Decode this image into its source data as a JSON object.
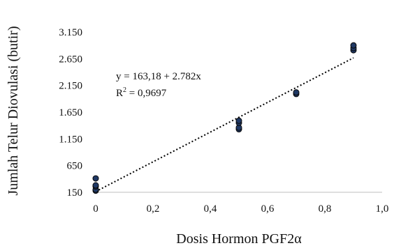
{
  "chart_data": {
    "type": "scatter",
    "xlabel": "Dosis Hormon PGF2α",
    "ylabel": "Jumlah Telur Diovulasi (butir)",
    "xlim": [
      0,
      1.0
    ],
    "ylim": [
      150,
      3150
    ],
    "x_ticks": [
      "0",
      "0,2",
      "0,4",
      "0,6",
      "0,8",
      "1,0"
    ],
    "x_tick_values": [
      0,
      0.2,
      0.4,
      0.6,
      0.8,
      1.0
    ],
    "y_ticks": [
      "150",
      "650",
      "1.150",
      "1.650",
      "2.150",
      "2.650",
      "3.150"
    ],
    "y_tick_values": [
      150,
      650,
      1150,
      1650,
      2150,
      2650,
      3150
    ],
    "grid": false,
    "marker_color": "#1f3864",
    "trendline_color": "#000000",
    "points": [
      {
        "x": 0,
        "y": 180
      },
      {
        "x": 0,
        "y": 200
      },
      {
        "x": 0,
        "y": 260
      },
      {
        "x": 0,
        "y": 280
      },
      {
        "x": 0,
        "y": 410
      },
      {
        "x": 0.5,
        "y": 1330
      },
      {
        "x": 0.5,
        "y": 1360
      },
      {
        "x": 0.5,
        "y": 1450
      },
      {
        "x": 0.5,
        "y": 1490
      },
      {
        "x": 0.7,
        "y": 1990
      },
      {
        "x": 0.7,
        "y": 2020
      },
      {
        "x": 0.9,
        "y": 2810
      },
      {
        "x": 0.9,
        "y": 2850
      },
      {
        "x": 0.9,
        "y": 2900
      }
    ],
    "trendline": {
      "type": "linear",
      "intercept": 163.18,
      "slope": 2782,
      "x_range": [
        0,
        0.9
      ],
      "equation_label": "y = 163,18 + 2.782x",
      "r2_prefix": "R",
      "r2_sup": "2",
      "r2_suffix": " = 0,9697"
    }
  }
}
